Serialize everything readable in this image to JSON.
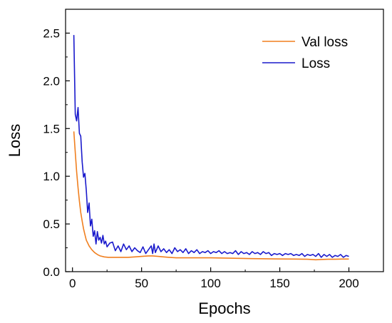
{
  "chart_data": {
    "type": "line",
    "title": "",
    "xlabel": "Epochs",
    "ylabel": "Loss",
    "xlim": [
      -5,
      225
    ],
    "ylim": [
      0,
      2.75
    ],
    "x_ticks": [
      0,
      50,
      100,
      150,
      200
    ],
    "x_tick_labels": [
      "0",
      "50",
      "100",
      "150",
      "200"
    ],
    "y_ticks": [
      0.0,
      0.5,
      1.0,
      1.5,
      2.0,
      2.5
    ],
    "y_tick_labels": [
      "0.0",
      "0.5",
      "1.0",
      "1.5",
      "2.0",
      "2.5"
    ],
    "grid": false,
    "legend": {
      "position": "top-right",
      "entries": [
        "Val loss",
        "Loss"
      ]
    },
    "series": [
      {
        "name": "Val loss",
        "color": "#f07f1f",
        "x": [
          1,
          2,
          3,
          4,
          5,
          6,
          7,
          8,
          9,
          10,
          12,
          14,
          16,
          18,
          20,
          23,
          26,
          30,
          35,
          40,
          45,
          50,
          55,
          58,
          62,
          66,
          70,
          75,
          80,
          90,
          100,
          110,
          120,
          130,
          140,
          150,
          160,
          170,
          176,
          180,
          185,
          190,
          195,
          200
        ],
        "y": [
          1.47,
          1.25,
          1.05,
          0.88,
          0.74,
          0.62,
          0.53,
          0.45,
          0.39,
          0.33,
          0.27,
          0.23,
          0.2,
          0.18,
          0.165,
          0.155,
          0.15,
          0.15,
          0.15,
          0.15,
          0.155,
          0.16,
          0.165,
          0.165,
          0.16,
          0.155,
          0.15,
          0.145,
          0.145,
          0.145,
          0.145,
          0.143,
          0.14,
          0.137,
          0.135,
          0.133,
          0.132,
          0.13,
          0.125,
          0.128,
          0.13,
          0.13,
          0.132,
          0.132
        ]
      },
      {
        "name": "Loss",
        "color": "#1a1acc",
        "x": [
          1,
          2,
          3,
          4,
          5,
          6,
          7,
          8,
          9,
          10,
          11,
          12,
          13,
          14,
          15,
          16,
          17,
          18,
          19,
          20,
          21,
          22,
          23,
          24,
          25,
          27,
          29,
          31,
          33,
          35,
          37,
          39,
          41,
          43,
          45,
          47,
          49,
          51,
          53,
          55,
          57,
          58,
          59,
          60,
          62,
          64,
          66,
          68,
          70,
          72,
          74,
          76,
          78,
          80,
          82,
          84,
          86,
          88,
          90,
          92,
          94,
          96,
          98,
          100,
          102,
          104,
          106,
          108,
          110,
          112,
          114,
          116,
          118,
          120,
          122,
          124,
          126,
          128,
          130,
          132,
          134,
          136,
          138,
          140,
          142,
          144,
          146,
          148,
          150,
          152,
          154,
          156,
          158,
          160,
          162,
          164,
          166,
          168,
          170,
          172,
          174,
          176,
          178,
          180,
          182,
          184,
          186,
          188,
          190,
          192,
          194,
          196,
          198,
          200
        ],
        "y": [
          2.48,
          1.65,
          1.58,
          1.72,
          1.45,
          1.42,
          1.15,
          0.99,
          1.03,
          0.85,
          0.62,
          0.72,
          0.48,
          0.55,
          0.37,
          0.43,
          0.29,
          0.42,
          0.33,
          0.36,
          0.3,
          0.38,
          0.29,
          0.32,
          0.26,
          0.3,
          0.31,
          0.22,
          0.27,
          0.21,
          0.29,
          0.23,
          0.27,
          0.21,
          0.25,
          0.22,
          0.2,
          0.26,
          0.19,
          0.23,
          0.27,
          0.19,
          0.29,
          0.2,
          0.27,
          0.21,
          0.24,
          0.2,
          0.23,
          0.19,
          0.25,
          0.21,
          0.23,
          0.2,
          0.24,
          0.19,
          0.22,
          0.2,
          0.23,
          0.19,
          0.21,
          0.2,
          0.22,
          0.19,
          0.21,
          0.2,
          0.22,
          0.19,
          0.21,
          0.19,
          0.2,
          0.19,
          0.22,
          0.18,
          0.21,
          0.19,
          0.2,
          0.18,
          0.21,
          0.19,
          0.2,
          0.18,
          0.21,
          0.19,
          0.2,
          0.17,
          0.19,
          0.18,
          0.19,
          0.17,
          0.19,
          0.18,
          0.19,
          0.17,
          0.18,
          0.17,
          0.19,
          0.16,
          0.18,
          0.17,
          0.18,
          0.16,
          0.19,
          0.15,
          0.18,
          0.16,
          0.18,
          0.15,
          0.17,
          0.16,
          0.18,
          0.15,
          0.17,
          0.16
        ]
      }
    ]
  }
}
